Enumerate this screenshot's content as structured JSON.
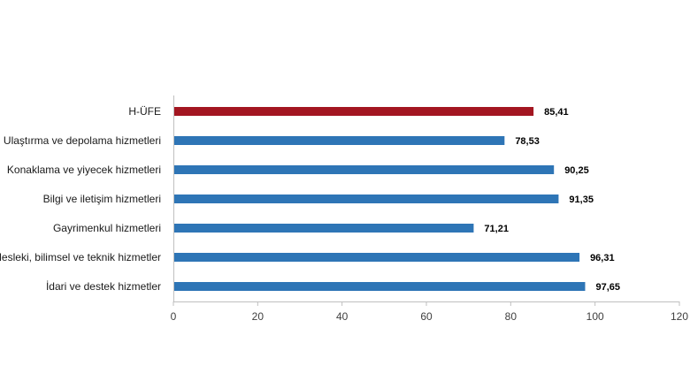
{
  "chart_data": {
    "type": "bar",
    "orientation": "horizontal",
    "title": "",
    "xlabel": "",
    "ylabel": "",
    "xlim": [
      0,
      120
    ],
    "ticks": [
      0,
      20,
      40,
      60,
      80,
      100,
      120
    ],
    "tick_labels": [
      "0",
      "20",
      "40",
      "60",
      "80",
      "100",
      "120"
    ],
    "grid": false,
    "legend": "none",
    "categories": [
      "H-ÜFE",
      "Ulaştırma ve depolama hizmetleri",
      "Konaklama ve yiyecek hizmetleri",
      "Bilgi ve iletişim hizmetleri",
      "Gayrimenkul hizmetleri",
      "Mesleki, bilimsel ve teknik hizmetler",
      "İdari ve destek hizmetler"
    ],
    "values": [
      85.41,
      78.53,
      90.25,
      91.35,
      71.21,
      96.31,
      97.65
    ],
    "value_labels": [
      "85,41",
      "78,53",
      "90,25",
      "91,35",
      "71,21",
      "96,31",
      "97,65"
    ],
    "colors": {
      "highlight": "#A31621",
      "default": "#2E75B6",
      "axis": "#BFBFBF"
    },
    "highlight_index": 0
  }
}
